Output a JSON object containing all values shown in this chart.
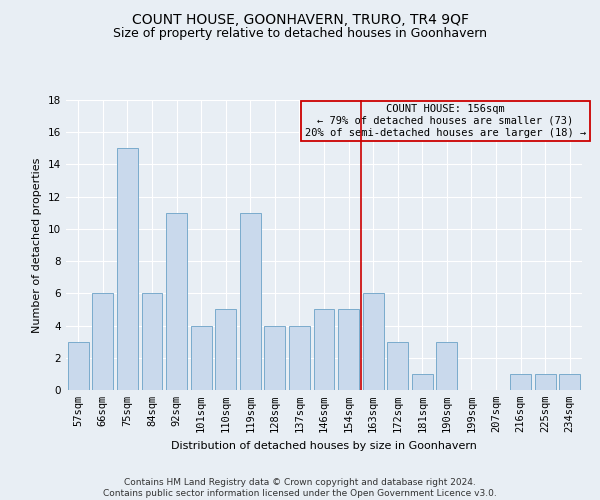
{
  "title": "COUNT HOUSE, GOONHAVERN, TRURO, TR4 9QF",
  "subtitle": "Size of property relative to detached houses in Goonhavern",
  "xlabel": "Distribution of detached houses by size in Goonhavern",
  "ylabel": "Number of detached properties",
  "categories": [
    "57sqm",
    "66sqm",
    "75sqm",
    "84sqm",
    "92sqm",
    "101sqm",
    "110sqm",
    "119sqm",
    "128sqm",
    "137sqm",
    "146sqm",
    "154sqm",
    "163sqm",
    "172sqm",
    "181sqm",
    "190sqm",
    "199sqm",
    "207sqm",
    "216sqm",
    "225sqm",
    "234sqm"
  ],
  "values": [
    3,
    6,
    15,
    6,
    11,
    4,
    5,
    11,
    4,
    4,
    5,
    5,
    6,
    3,
    1,
    3,
    0,
    0,
    1,
    1,
    1
  ],
  "bar_color": "#c9d9ec",
  "bar_edgecolor": "#7aabcc",
  "ylim": [
    0,
    18
  ],
  "yticks": [
    0,
    2,
    4,
    6,
    8,
    10,
    12,
    14,
    16,
    18
  ],
  "vline_color": "#cc0000",
  "vline_pos": 11.5,
  "annotation_title": "COUNT HOUSE: 156sqm",
  "annotation_line1": "← 79% of detached houses are smaller (73)",
  "annotation_line2": "20% of semi-detached houses are larger (18) →",
  "annotation_box_color": "#cc0000",
  "footer_line1": "Contains HM Land Registry data © Crown copyright and database right 2024.",
  "footer_line2": "Contains public sector information licensed under the Open Government Licence v3.0.",
  "background_color": "#e8eef4",
  "grid_color": "#ffffff",
  "title_fontsize": 10,
  "subtitle_fontsize": 9,
  "ylabel_fontsize": 8,
  "xlabel_fontsize": 8,
  "tick_fontsize": 7.5,
  "annotation_fontsize": 7.5,
  "footer_fontsize": 6.5
}
